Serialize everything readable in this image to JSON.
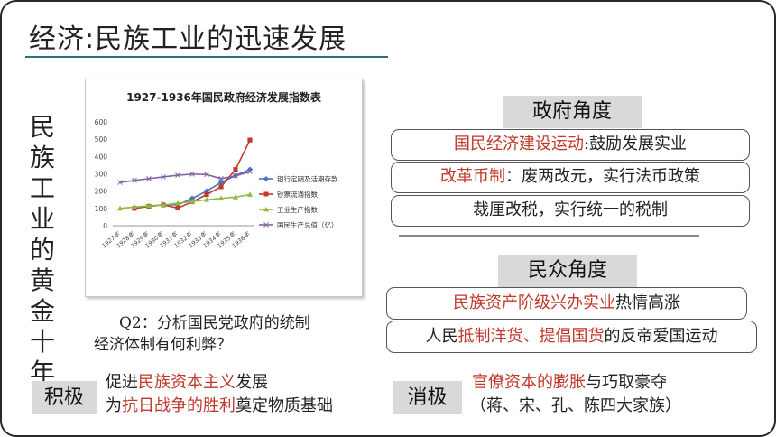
{
  "slide": {
    "title": "经济:民族工业的迅速发展",
    "vertical_title": "民族工业的黄金十年",
    "question_line1": "Q2：分析国民党政府的统制",
    "question_line2": "经济体制有何利弊？"
  },
  "government": {
    "header": "政府角度",
    "items": [
      {
        "highlight": "国民经济建设运动",
        "rest": ":鼓励发展实业"
      },
      {
        "highlight": "改革币制",
        "rest": "：废两改元，实行法币政策"
      },
      {
        "highlight": "",
        "rest": "裁厘改税，实行统一的税制"
      }
    ]
  },
  "people": {
    "header": "民众角度",
    "item1": {
      "highlight": "民族资产阶级兴办实业",
      "rest": "热情高涨"
    },
    "item2": {
      "pre": "人民",
      "highlight": "抵制洋货、提倡国货",
      "rest": "的反帝爱国运动"
    }
  },
  "positive": {
    "tag": "积极",
    "line1_pre": "促进",
    "line1_highlight": "民族资本主义",
    "line1_post": "发展",
    "line2_pre": "为",
    "line2_highlight": "抗日战争的胜利",
    "line2_post": "奠定物质基础"
  },
  "negative": {
    "tag": "消极",
    "line1_highlight": "官僚资本的膨胀",
    "line1_post": "与巧取豪夺",
    "line2": "（蒋、宋、孔、陈四大家族）"
  },
  "chart_data": {
    "type": "line",
    "title": "1927-1936年国民政府经济发展指数表",
    "categories": [
      "1927年",
      "1928年",
      "1929年",
      "1930年",
      "1931年",
      "1932年",
      "1933年",
      "1934年",
      "1935年",
      "1936年"
    ],
    "ylim": [
      0,
      600
    ],
    "yticks": [
      0,
      100,
      200,
      300,
      400,
      500,
      600
    ],
    "grid": false,
    "legend_position": "right",
    "series": [
      {
        "name": "银行定期及活期存款",
        "color": "#4472c4",
        "marker": "diamond",
        "values": [
          null,
          105,
          112,
          122,
          120,
          158,
          200,
          250,
          290,
          325
        ]
      },
      {
        "name": "钞票流通指数",
        "color": "#c0392b",
        "marker": "square",
        "values": [
          null,
          100,
          112,
          120,
          102,
          138,
          180,
          225,
          325,
          495
        ]
      },
      {
        "name": "工业生产指数",
        "color": "#8dbb3c",
        "marker": "triangle",
        "values": [
          100,
          108,
          115,
          120,
          130,
          140,
          150,
          158,
          165,
          180
        ]
      },
      {
        "name": "国民生产总值（亿）",
        "color": "#8064a2",
        "marker": "x",
        "values": [
          250,
          262,
          272,
          282,
          292,
          298,
          296,
          272,
          288,
          312
        ]
      }
    ]
  },
  "colors": {
    "accent_red": "#c0392b",
    "title_rule": "#2f6f6f",
    "tag_bg": "#d9d9d9"
  }
}
